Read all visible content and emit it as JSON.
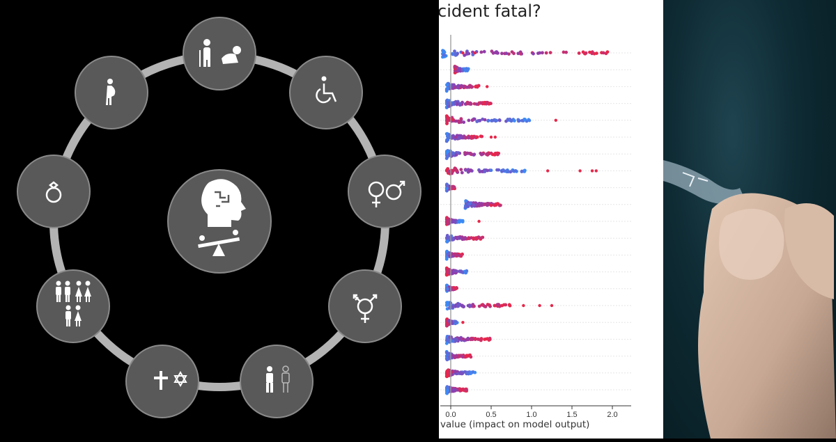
{
  "left_panel": {
    "center": {
      "icons": [
        "brain-icon",
        "seesaw-icon"
      ]
    },
    "ring_nodes": [
      {
        "icon": "elderly-and-baby-icon"
      },
      {
        "icon": "wheelchair-icon"
      },
      {
        "icon": "gender-symbols-icon"
      },
      {
        "icon": "transgender-symbol-icon"
      },
      {
        "icon": "race-figures-icon"
      },
      {
        "icon": "religion-symbols-icon"
      },
      {
        "icon": "family-figures-icon"
      },
      {
        "icon": "ring-icon"
      },
      {
        "icon": "pregnant-woman-icon"
      }
    ],
    "colors": {
      "node_fill": "#595959",
      "ring": "#b3b3b3",
      "node_border": "#8a8a8a"
    }
  },
  "mid_panel": {
    "title": "cident fatal?",
    "xlabel": "value (impact on model output)",
    "x_ticks": [
      "0.0",
      "0.5",
      "1.0",
      "1.5",
      "2.0"
    ]
  },
  "chart_data": {
    "type": "scatter",
    "title": "cident fatal?",
    "xlabel": "value (impact on model output)",
    "xlim": [
      -0.1,
      2.2
    ],
    "x_ticks": [
      0.0,
      0.5,
      1.0,
      1.5,
      2.0
    ],
    "rows": [
      {
        "min": -0.1,
        "max": 2.1,
        "outliers": [
          0.15,
          0.3
        ]
      },
      {
        "min": 0.05,
        "max": 0.22,
        "outliers": []
      },
      {
        "min": -0.05,
        "max": 0.35,
        "outliers": [
          0.45
        ]
      },
      {
        "min": -0.05,
        "max": 0.5,
        "outliers": []
      },
      {
        "min": -0.05,
        "max": 1.0,
        "outliers": [
          1.3
        ]
      },
      {
        "min": -0.05,
        "max": 0.4,
        "outliers": [
          0.5,
          0.55
        ]
      },
      {
        "min": -0.05,
        "max": 0.6,
        "outliers": []
      },
      {
        "min": -0.05,
        "max": 0.95,
        "outliers": [
          1.2,
          1.6,
          1.75,
          1.8
        ]
      },
      {
        "min": -0.05,
        "max": 0.05,
        "outliers": []
      },
      {
        "min": 0.18,
        "max": 0.65,
        "outliers": []
      },
      {
        "min": -0.05,
        "max": 0.15,
        "outliers": [
          0.35
        ]
      },
      {
        "min": -0.05,
        "max": 0.4,
        "outliers": []
      },
      {
        "min": -0.05,
        "max": 0.15,
        "outliers": []
      },
      {
        "min": -0.05,
        "max": 0.2,
        "outliers": []
      },
      {
        "min": -0.05,
        "max": 0.08,
        "outliers": []
      },
      {
        "min": -0.05,
        "max": 0.75,
        "outliers": [
          0.9,
          1.1,
          1.25
        ]
      },
      {
        "min": -0.05,
        "max": 0.08,
        "outliers": [
          0.15
        ]
      },
      {
        "min": -0.05,
        "max": 0.55,
        "outliers": []
      },
      {
        "min": -0.05,
        "max": 0.25,
        "outliers": []
      },
      {
        "min": -0.05,
        "max": 0.3,
        "outliers": []
      },
      {
        "min": -0.05,
        "max": 0.2,
        "outliers": []
      }
    ],
    "colors": {
      "low": "#3b8bf5",
      "high": "#e8274a",
      "mid": "#8b3fb0"
    }
  },
  "right_panel": {
    "description_icon": "hand-holding-cable-icon"
  }
}
